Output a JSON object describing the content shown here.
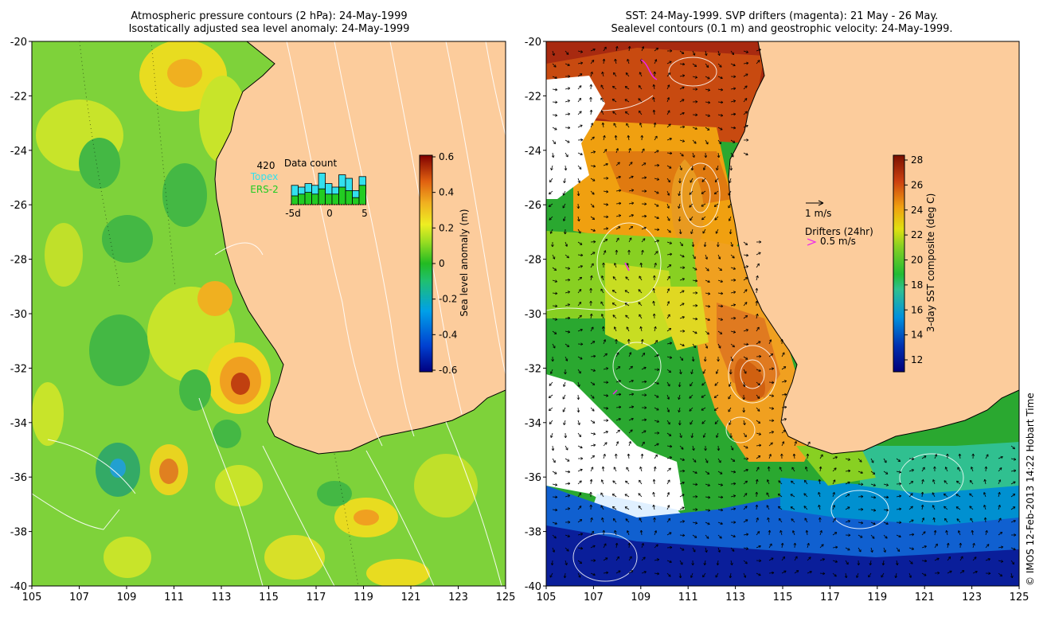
{
  "left_panel": {
    "title_line1": "Atmospheric pressure contours (2 hPa): 24-May-1999",
    "title_line2": "Isostatically adjusted sea level anomaly: 24-May-1999",
    "colorbar_label": "Sea level anomaly (m)",
    "colorbar_ticks": [
      "0.6",
      "0.4",
      "0.2",
      "0",
      "-0.2",
      "-0.4",
      "-0.6"
    ],
    "colorbar_colors": [
      "#000080",
      "#0033cc",
      "#0099ee",
      "#33cc99",
      "#22bb22",
      "#88dd22",
      "#eeee22",
      "#f0b020",
      "#e07010",
      "#c03010",
      "#800000"
    ],
    "inset": {
      "count": "420",
      "topex_label": "Topex",
      "ers_label": "ERS-2",
      "title": "Data count",
      "ticks": [
        "-5d",
        "0",
        "5"
      ],
      "topex_values": [
        0.55,
        0.5,
        0.6,
        0.55,
        0.9,
        0.6,
        0.5,
        0.85,
        0.75,
        0.4,
        0.8
      ],
      "ers_values": [
        0.25,
        0.3,
        0.35,
        0.3,
        0.45,
        0.3,
        0.3,
        0.5,
        0.4,
        0.2,
        0.55
      ],
      "topex_color": "#33e0ee",
      "ers_color": "#22cc22"
    }
  },
  "right_panel": {
    "title_line1": "SST: 24-May-1999. SVP drifters (magenta): 21 May - 26 May.",
    "title_line2": "Sealevel contours (0.1 m) and geostrophic velocity: 24-May-1999.",
    "colorbar_label": "3-day SST composite (deg C)",
    "colorbar_ticks": [
      "28",
      "26",
      "24",
      "22",
      "20",
      "18",
      "16",
      "14",
      "12"
    ],
    "colorbar_colors": [
      "#00007a",
      "#0022aa",
      "#0088dd",
      "#33ccaa",
      "#22bb33",
      "#66cc22",
      "#bbdd11",
      "#eecc11",
      "#f0a010",
      "#dd6010",
      "#aa2010",
      "#7a1000"
    ],
    "velocity_label": "1 m/s",
    "drifters_label": "Drifters (24hr)",
    "drifter_speed": "0.5 m/s",
    "drifter_color": "#ee22ee"
  },
  "axes": {
    "x_ticks": [
      "105",
      "107",
      "109",
      "111",
      "113",
      "115",
      "117",
      "119",
      "121",
      "123",
      "125"
    ],
    "y_ticks": [
      "-20",
      "-22",
      "-24",
      "-26",
      "-28",
      "-30",
      "-32",
      "-34",
      "-36",
      "-38",
      "-40"
    ],
    "lon_range": [
      105,
      125
    ],
    "lat_range": [
      -40,
      -20
    ]
  },
  "colors": {
    "land": "#fccc9c",
    "sea_left": "#7ed23a",
    "sea_right": "#2aa830"
  },
  "credit": "© IMOS 12-Feb-2013 14:22 Hobart Time"
}
